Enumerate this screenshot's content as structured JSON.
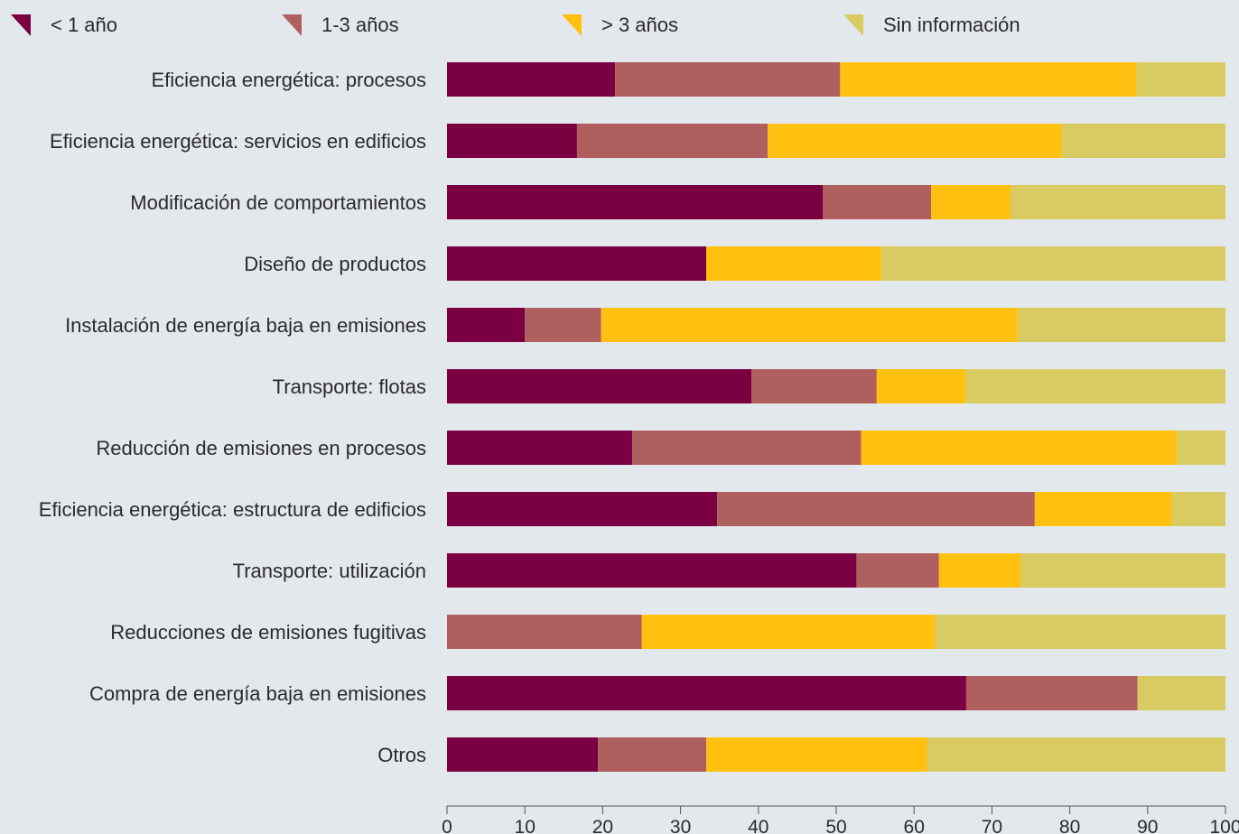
{
  "chart_data": {
    "type": "bar",
    "orientation": "horizontal",
    "stacked": true,
    "title": "",
    "xlabel": "",
    "ylabel": "",
    "xlim": [
      0,
      100
    ],
    "xticks": [
      0,
      10,
      20,
      30,
      40,
      50,
      60,
      70,
      80,
      90,
      100
    ],
    "grid": false,
    "legend_position": "top",
    "categories": [
      "Eficiencia energética: procesos",
      "Eficiencia energética: servicios en edificios",
      "Modificación de comportamientos",
      "Diseño de productos",
      "Instalación de energía baja en emisiones",
      "Transporte: flotas",
      "Reducción de emisiones en procesos",
      "Eficiencia energética: estructura de edificios",
      "Transporte: utilización",
      "Reducciones de emisiones fugitivas",
      "Compra de energía baja en emisiones",
      "Otros"
    ],
    "series": [
      {
        "name": "< 1 año",
        "color": "#7b0041",
        "values": [
          21.6,
          16.7,
          48.3,
          33.3,
          10.0,
          39.1,
          23.8,
          34.7,
          52.6,
          0.0,
          66.7,
          19.4
        ]
      },
      {
        "name": "1-3 años",
        "color": "#b05f5f",
        "values": [
          28.9,
          24.5,
          13.9,
          0.0,
          9.8,
          16.1,
          29.4,
          40.8,
          10.6,
          25.0,
          22.0,
          13.9
        ]
      },
      {
        "name": "> 3 años",
        "color": "#ffc010",
        "values": [
          38.1,
          37.8,
          10.2,
          22.5,
          53.5,
          11.4,
          40.6,
          17.6,
          10.5,
          37.7,
          0.0,
          28.4
        ]
      },
      {
        "name": "Sin información",
        "color": "#d8cb62",
        "values": [
          11.4,
          21.0,
          27.6,
          44.2,
          26.7,
          33.4,
          6.2,
          6.9,
          26.3,
          37.3,
          11.3,
          38.3
        ]
      }
    ]
  }
}
